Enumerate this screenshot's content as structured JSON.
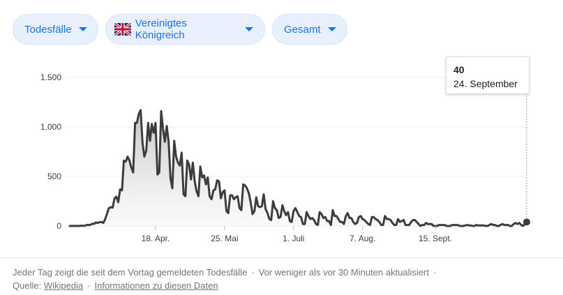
{
  "filters": {
    "metric": "Todesfälle",
    "region": "Vereinigtes Königreich",
    "scope": "Gesamt"
  },
  "tooltip": {
    "value": "40",
    "date": "24. September"
  },
  "footer": {
    "description": "Jeder Tag zeigt die seit dem Vortag gemeldeten Todesfälle",
    "updated": "Vor weniger als vor 30 Minuten aktualisiert",
    "source_label": "Quelle:",
    "source_link": "Wikipedia",
    "info_link": "Informationen zu diesen Daten"
  },
  "colors": {
    "line": "#3c3c3c",
    "area_top": "#bdbdbd",
    "chip_bg": "#e8f0fe",
    "chip_text": "#1a73e8"
  },
  "chart_data": {
    "type": "area",
    "title": "",
    "xlabel": "",
    "ylabel": "",
    "ylim": [
      0,
      1500
    ],
    "y_ticks": [
      0,
      500,
      1000,
      1500
    ],
    "y_tick_labels": [
      "0",
      "500",
      "1.000",
      "1.500"
    ],
    "x_tick_labels": [
      "18. Apr.",
      "25. Mai",
      "1. Juli",
      "7. Aug.",
      "15. Sept."
    ],
    "x_tick_dates": [
      "2020-04-18",
      "2020-05-25",
      "2020-07-01",
      "2020-08-07",
      "2020-09-15"
    ],
    "x_start": "2020-03-03",
    "grid": true,
    "legend": "none",
    "series": [
      {
        "values": [
          0,
          0,
          1,
          0,
          1,
          0,
          3,
          2,
          1,
          10,
          11,
          10,
          22,
          21,
          35,
          30,
          38,
          40,
          30,
          70,
          125,
          180,
          190,
          185,
          280,
          295,
          240,
          370,
          360,
          660,
          650,
          700,
          660,
          590,
          540,
          1040,
          1040,
          1130,
          1170,
          840,
          700,
          760,
          1040,
          860,
          1030,
          940,
          1040,
          520,
          540,
          1160,
          980,
          850,
          1010,
          850,
          480,
          380,
          860,
          700,
          640,
          610,
          740,
          320,
          300,
          660,
          620,
          470,
          640,
          450,
          350,
          300,
          600,
          490,
          510,
          420,
          490,
          300,
          270,
          360,
          370,
          460,
          450,
          280,
          340,
          360,
          150,
          130,
          310,
          310,
          270,
          290,
          300,
          180,
          160,
          420,
          410,
          380,
          330,
          240,
          120,
          150,
          290,
          200,
          190,
          200,
          320,
          170,
          130,
          70,
          60,
          250,
          180,
          160,
          80,
          90,
          210,
          150,
          110,
          140,
          50,
          40,
          150,
          180,
          140,
          100,
          90,
          20,
          20,
          140,
          100,
          70,
          80,
          60,
          20,
          10,
          140,
          120,
          80,
          90,
          50,
          50,
          10,
          160,
          100,
          100,
          70,
          40,
          40,
          20,
          100,
          130,
          80,
          80,
          40,
          20,
          30,
          90,
          100,
          70,
          60,
          40,
          20,
          10,
          90,
          90,
          70,
          60,
          40,
          10,
          10,
          100,
          70,
          70,
          60,
          30,
          10,
          10,
          70,
          40,
          50,
          60,
          10,
          10,
          10,
          40,
          60,
          60,
          40,
          20,
          0,
          10,
          10,
          30,
          20,
          20,
          20,
          0,
          0,
          0,
          10,
          10,
          10,
          10,
          0,
          0,
          0,
          10,
          10,
          10,
          10,
          0,
          0,
          0,
          5,
          10,
          5,
          5,
          0,
          0,
          10,
          5,
          5,
          5,
          5,
          0,
          0,
          10,
          20,
          10,
          10,
          0,
          0,
          10,
          20,
          10,
          10,
          10,
          0,
          0,
          20,
          30,
          20,
          30,
          10,
          0,
          20,
          40
        ]
      }
    ]
  }
}
